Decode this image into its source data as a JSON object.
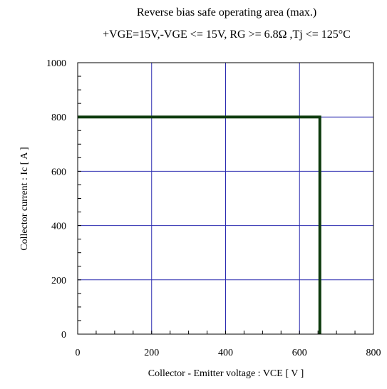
{
  "chart_data": {
    "type": "line",
    "title": "Reverse bias safe operating area (max.)",
    "subtitle": "+VGE=15V,-VGE <= 15V, RG >= 6.8Ω ,Tj <= 125°C",
    "xlabel": "Collector - Emitter voltage  :  VCE  [ V ]",
    "ylabel": "Collector current  : Ic  [ A ]",
    "xlim": [
      0,
      800
    ],
    "ylim": [
      0,
      1000
    ],
    "x_ticks": [
      0,
      200,
      400,
      600,
      800
    ],
    "y_ticks": [
      0,
      200,
      400,
      600,
      800,
      1000
    ],
    "x_minor_step": 50,
    "y_minor_step": 50,
    "grid": true,
    "grid_color": "#2b2bb0",
    "series": [
      {
        "color": "#0c3a0c",
        "x": [
          0,
          655,
          655
        ],
        "y": [
          800,
          800,
          0
        ]
      }
    ]
  }
}
